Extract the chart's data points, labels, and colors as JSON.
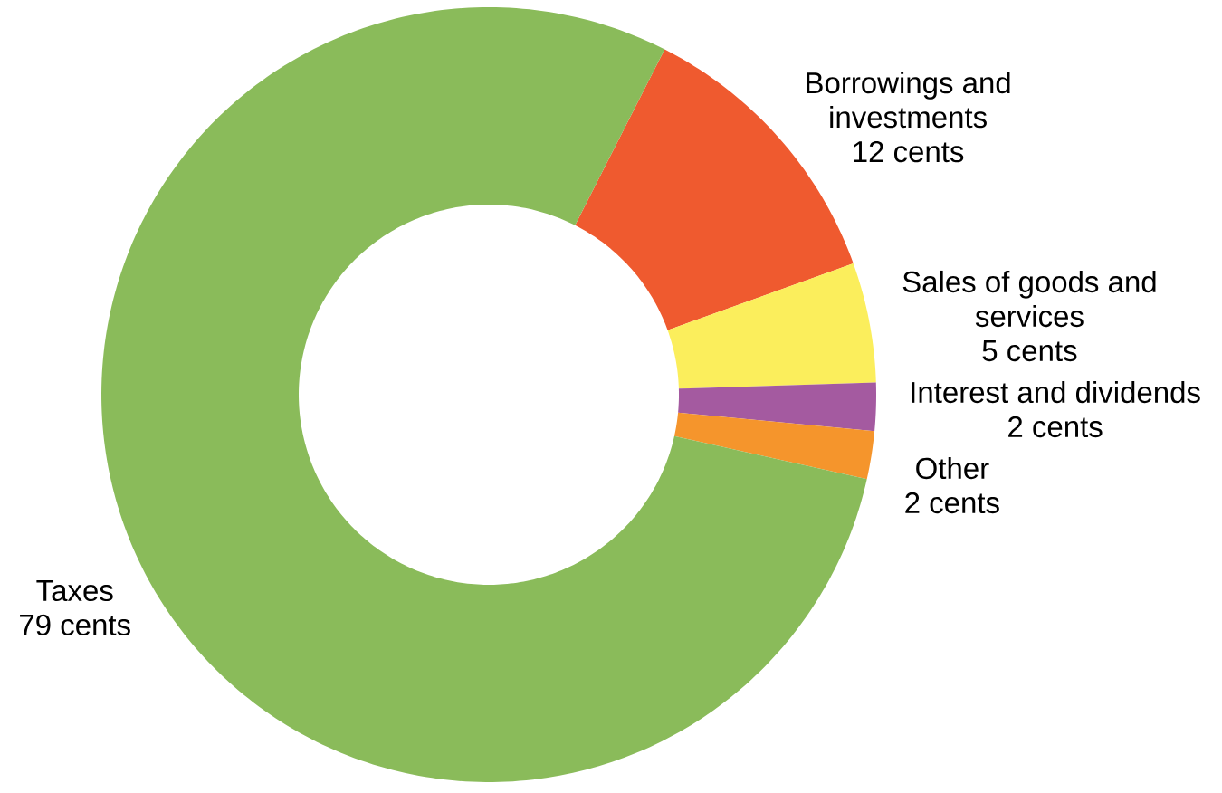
{
  "chart_data": {
    "type": "donut",
    "categories": [
      "Borrowings and investments",
      "Sales of goods and services",
      "Interest and dividends",
      "Other",
      "Taxes"
    ],
    "values": [
      12,
      5,
      2,
      2,
      79
    ],
    "value_labels": [
      "12 cents",
      "5 cents",
      "2 cents",
      "2 cents",
      "79 cents"
    ],
    "colors": [
      "#ef5a2f",
      "#fbee5c",
      "#a45aa0",
      "#f5952c",
      "#8abb5a"
    ]
  }
}
